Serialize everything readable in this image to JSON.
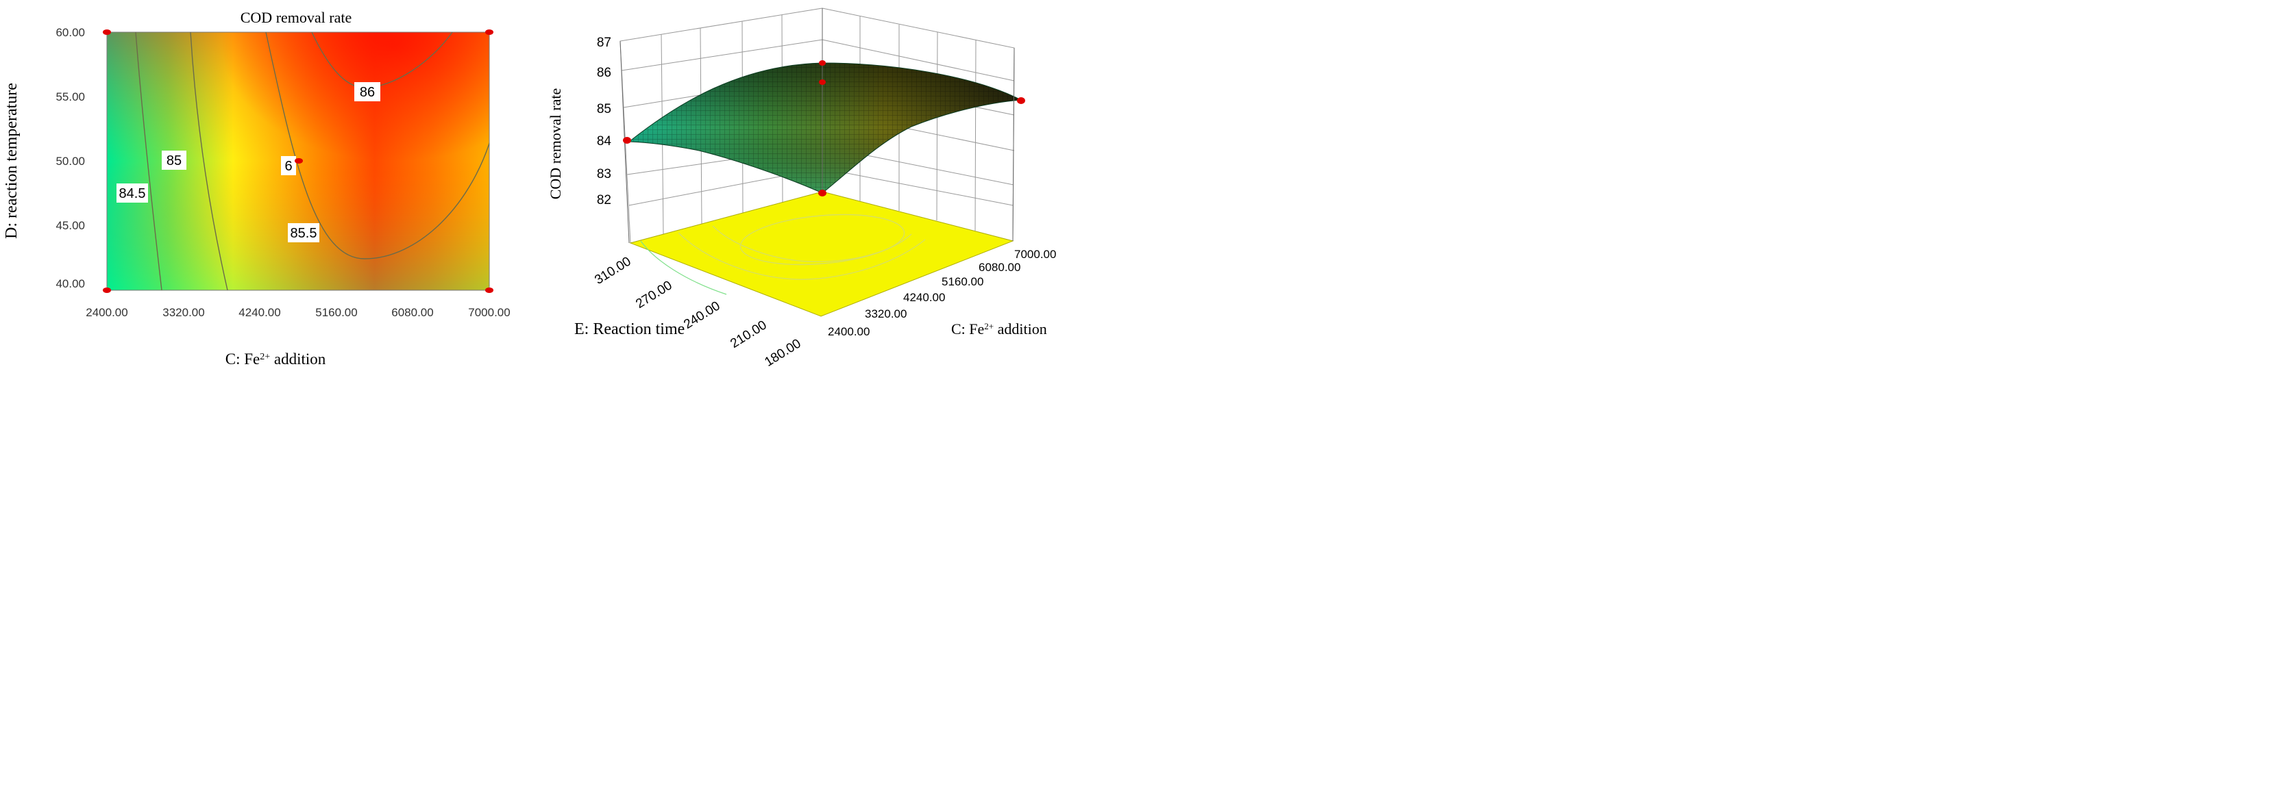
{
  "colors": {
    "contour_low": "#00e08a",
    "contour_mid": "#ffee00",
    "contour_high": "#ff2a00",
    "design_point": "#e00000",
    "floor": "#f5f500",
    "surface_low": "#17b486",
    "surface_mid": "#7a8a1a",
    "surface_high": "#3a2200"
  },
  "chart_data": [
    {
      "type": "contour",
      "title": "COD removal rate",
      "xlabel": "C: Fe2+ addition",
      "xlabel_main": "C: Fe",
      "xlabel_sup": "2+",
      "xlabel_rest": " addition",
      "ylabel": "D: reaction temperature",
      "x_ticks": [
        "2400.00",
        "3320.00",
        "4240.00",
        "5160.00",
        "6080.00",
        "7000.00"
      ],
      "y_ticks": [
        "40.00",
        "45.00",
        "50.00",
        "55.00",
        "60.00"
      ],
      "xlim": [
        2400,
        7000
      ],
      "ylim": [
        40,
        60
      ],
      "contour_levels": [
        84.5,
        85,
        85.5,
        86
      ],
      "contour_labels": [
        "84.5",
        "85",
        "85.5",
        "86"
      ],
      "center_label": "6",
      "center_point": {
        "x": 4700,
        "y": 50
      },
      "design_points": [
        {
          "x": 2400,
          "y": 60
        },
        {
          "x": 7000,
          "y": 60
        },
        {
          "x": 2400,
          "y": 40
        },
        {
          "x": 7000,
          "y": 40
        }
      ]
    },
    {
      "type": "surface3d",
      "zlabel": "COD removal rate",
      "z_ticks": [
        "82",
        "83",
        "84",
        "85",
        "86",
        "87"
      ],
      "zlim": [
        82,
        87
      ],
      "xlabel": "C: Fe2+ addition",
      "xlabel_main": "C: Fe",
      "xlabel_sup": "2+",
      "xlabel_rest": " addition",
      "x_ticks": [
        "2400.00",
        "3320.00",
        "4240.00",
        "5160.00",
        "6080.00",
        "7000.00"
      ],
      "xlim": [
        2400,
        7000
      ],
      "ylabel": "E: Reaction time",
      "y_ticks": [
        "180.00",
        "210.00",
        "240.00",
        "270.00",
        "310.00"
      ],
      "ylim": [
        180,
        330
      ],
      "design_points": [
        {
          "x": 2400,
          "y": 330,
          "z": 83.9
        },
        {
          "x": 7000,
          "y": 180,
          "z": 85.0
        },
        {
          "x": 2400,
          "y": 180,
          "z": 82.0
        },
        {
          "x": 7000,
          "y": 330,
          "z": 86.0
        },
        {
          "x": 4700,
          "y": 255,
          "z": 85.8
        }
      ]
    }
  ]
}
